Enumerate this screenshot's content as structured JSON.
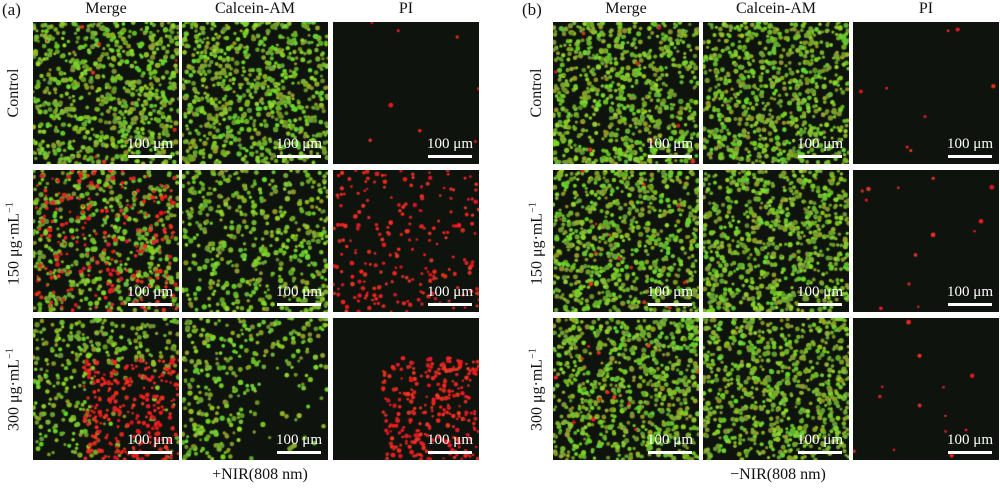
{
  "panels": [
    {
      "letter": "(a)",
      "columns": [
        "Merge",
        "Calcein-AM",
        "PI"
      ],
      "rows": [
        {
          "label": "Control",
          "unit": ""
        },
        {
          "label": "150 μg·mL",
          "unit": "−1"
        },
        {
          "label": "300 μg·mL",
          "unit": "−1"
        }
      ],
      "footer": "+NIR(808 nm)"
    },
    {
      "letter": "(b)",
      "columns": [
        "Merge",
        "Calcein-AM",
        "PI"
      ],
      "rows": [
        {
          "label": "Control",
          "unit": ""
        },
        {
          "label": "150 μg·mL",
          "unit": "−1"
        },
        {
          "label": "300 μg·mL",
          "unit": "−1"
        }
      ],
      "footer": "−NIR(808 nm)"
    }
  ],
  "scale_bar_text": "100 μm",
  "colors": {
    "live_cell": "#8fc83a",
    "dead_cell": "#e0281e",
    "background": "#0f130d"
  },
  "staining": {
    "a": {
      "live_density": [
        0.85,
        0.55,
        0.5
      ],
      "dead_density": [
        0.01,
        0.45,
        0.55
      ]
    },
    "b": {
      "live_density": [
        0.85,
        0.85,
        0.85
      ],
      "dead_density": [
        0.01,
        0.02,
        0.02
      ]
    }
  }
}
